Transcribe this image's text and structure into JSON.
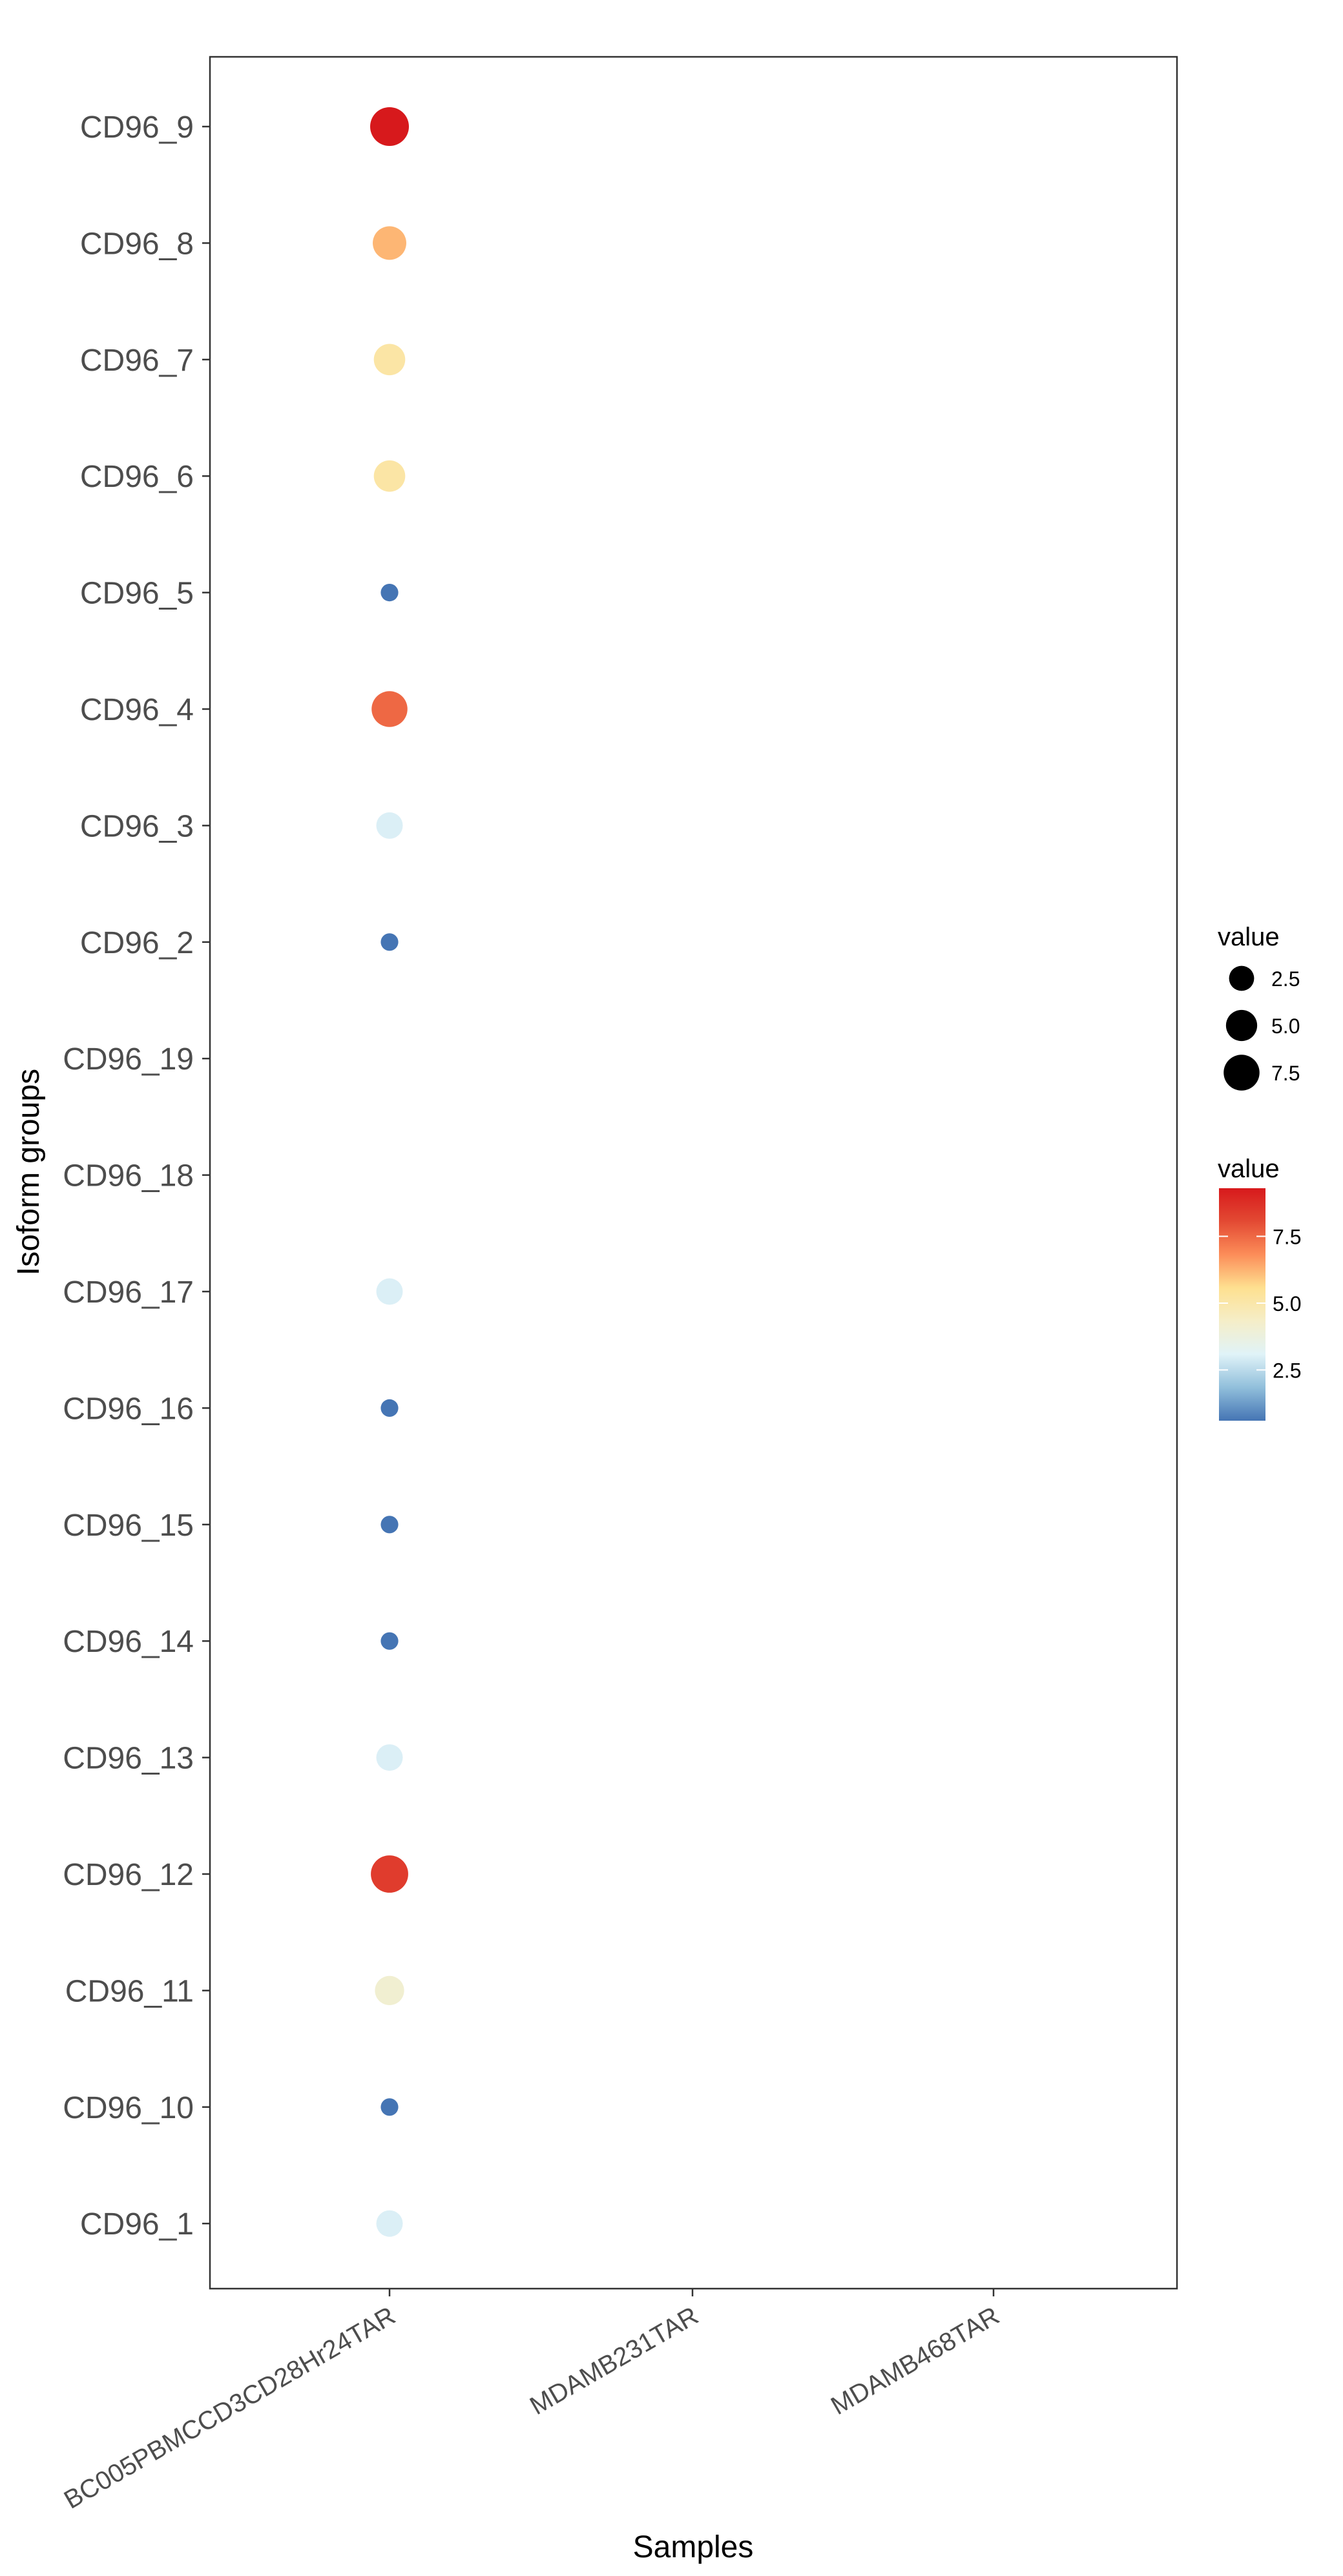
{
  "chart_data": {
    "type": "scatter",
    "xlabel": "Samples",
    "ylabel": "Isoform groups",
    "categories_x": [
      "BC005PBMCCD3CD28Hr24TAR",
      "MDAMB231TAR",
      "MDAMB468TAR"
    ],
    "categories_y": [
      "CD96_9",
      "CD96_8",
      "CD96_7",
      "CD96_6",
      "CD96_5",
      "CD96_4",
      "CD96_3",
      "CD96_2",
      "CD96_19",
      "CD96_18",
      "CD96_17",
      "CD96_16",
      "CD96_15",
      "CD96_14",
      "CD96_13",
      "CD96_12",
      "CD96_11",
      "CD96_10",
      "CD96_1"
    ],
    "points": [
      {
        "x": "BC005PBMCCD3CD28Hr24TAR",
        "y": "CD96_9",
        "value": 9.3
      },
      {
        "x": "BC005PBMCCD3CD28Hr24TAR",
        "y": "CD96_8",
        "value": 6.2
      },
      {
        "x": "BC005PBMCCD3CD28Hr24TAR",
        "y": "CD96_7",
        "value": 5.1
      },
      {
        "x": "BC005PBMCCD3CD28Hr24TAR",
        "y": "CD96_6",
        "value": 5.1
      },
      {
        "x": "BC005PBMCCD3CD28Hr24TAR",
        "y": "CD96_5",
        "value": 0.6
      },
      {
        "x": "BC005PBMCCD3CD28Hr24TAR",
        "y": "CD96_4",
        "value": 7.5
      },
      {
        "x": "BC005PBMCCD3CD28Hr24TAR",
        "y": "CD96_3",
        "value": 3.0
      },
      {
        "x": "BC005PBMCCD3CD28Hr24TAR",
        "y": "CD96_2",
        "value": 0.6
      },
      {
        "x": "BC005PBMCCD3CD28Hr24TAR",
        "y": "CD96_17",
        "value": 3.0
      },
      {
        "x": "BC005PBMCCD3CD28Hr24TAR",
        "y": "CD96_16",
        "value": 0.6
      },
      {
        "x": "BC005PBMCCD3CD28Hr24TAR",
        "y": "CD96_15",
        "value": 0.6
      },
      {
        "x": "BC005PBMCCD3CD28Hr24TAR",
        "y": "CD96_14",
        "value": 0.6
      },
      {
        "x": "BC005PBMCCD3CD28Hr24TAR",
        "y": "CD96_13",
        "value": 3.0
      },
      {
        "x": "BC005PBMCCD3CD28Hr24TAR",
        "y": "CD96_12",
        "value": 8.4
      },
      {
        "x": "BC005PBMCCD3CD28Hr24TAR",
        "y": "CD96_11",
        "value": 4.1
      },
      {
        "x": "BC005PBMCCD3CD28Hr24TAR",
        "y": "CD96_10",
        "value": 0.6
      },
      {
        "x": "BC005PBMCCD3CD28Hr24TAR",
        "y": "CD96_1",
        "value": 3.0
      }
    ],
    "size_legend": {
      "title": "value",
      "breaks": [
        2.5,
        5.0,
        7.5
      ],
      "labels": [
        "2.5",
        "5.0",
        "7.5"
      ]
    },
    "color_legend": {
      "title": "value",
      "breaks": [
        2.5,
        5.0,
        7.5
      ],
      "labels": [
        "2.5",
        "5.0",
        "7.5"
      ],
      "range": [
        0.6,
        9.3
      ],
      "palette": [
        "#4575b4",
        "#91bfdb",
        "#e0f3f8",
        "#f5eec8",
        "#fee090",
        "#fc8d59",
        "#e34a33",
        "#d7191c"
      ]
    },
    "grid": false,
    "legend_position": "right"
  }
}
